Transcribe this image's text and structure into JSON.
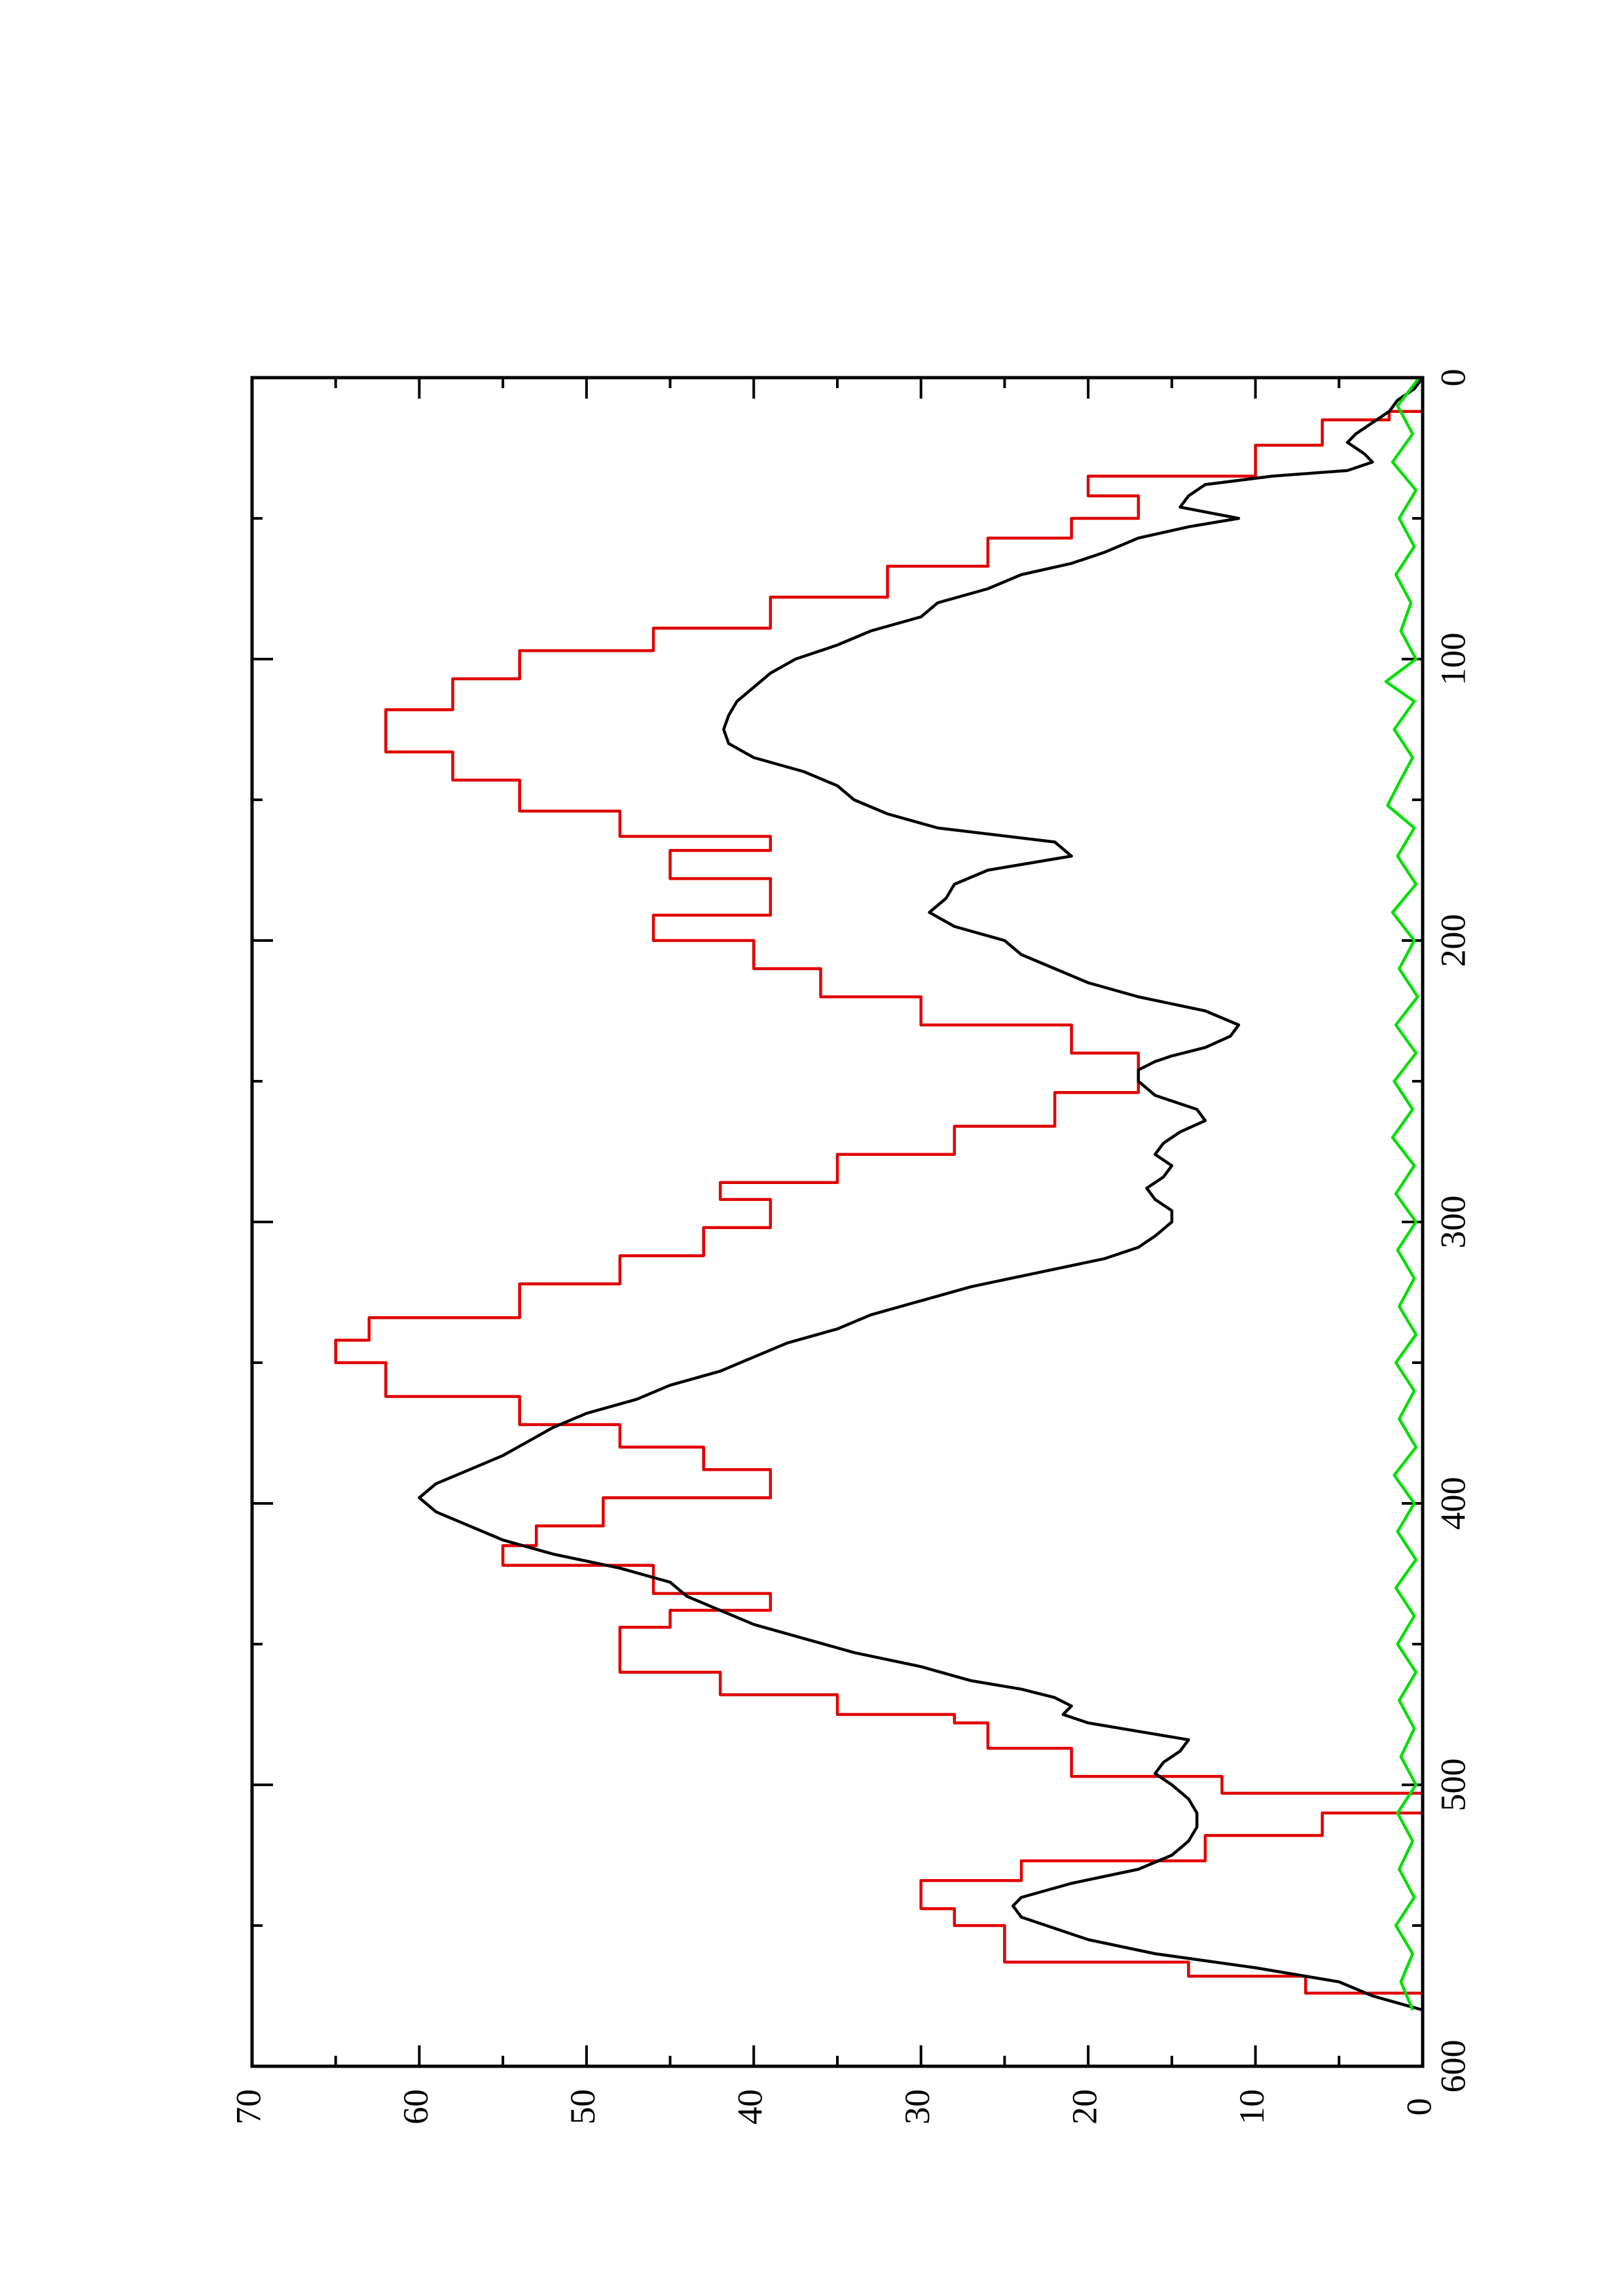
{
  "chart_data": {
    "type": "line",
    "title": "",
    "xlabel": "",
    "ylabel": "",
    "orientation": "rotated-90-ccw",
    "xlim": [
      0,
      600
    ],
    "ylim": [
      0,
      70
    ],
    "x_ticks": [
      "0",
      "100",
      "200",
      "300",
      "400",
      "500",
      "600"
    ],
    "y_ticks": [
      "0",
      "10",
      "20",
      "30",
      "40",
      "50",
      "60",
      "70"
    ],
    "x_minor_step": 50,
    "y_minor_step": 5,
    "grid": false,
    "legend": "none",
    "series": [
      {
        "color": "#e00000",
        "style": "step",
        "points": [
          [
            0,
            0
          ],
          [
            12,
            0
          ],
          [
            12,
            2
          ],
          [
            15,
            2
          ],
          [
            15,
            6
          ],
          [
            24,
            6
          ],
          [
            24,
            10
          ],
          [
            35,
            10
          ],
          [
            35,
            20
          ],
          [
            42,
            20
          ],
          [
            42,
            17
          ],
          [
            50,
            17
          ],
          [
            50,
            21
          ],
          [
            57,
            21
          ],
          [
            57,
            26
          ],
          [
            67,
            26
          ],
          [
            67,
            32
          ],
          [
            78,
            32
          ],
          [
            78,
            39
          ],
          [
            89,
            39
          ],
          [
            89,
            46
          ],
          [
            97,
            46
          ],
          [
            97,
            54
          ],
          [
            107,
            54
          ],
          [
            107,
            58
          ],
          [
            118,
            58
          ],
          [
            118,
            62
          ],
          [
            133,
            62
          ],
          [
            133,
            58
          ],
          [
            143,
            58
          ],
          [
            143,
            54
          ],
          [
            154,
            54
          ],
          [
            154,
            48
          ],
          [
            163,
            48
          ],
          [
            163,
            39
          ],
          [
            168,
            39
          ],
          [
            168,
            45
          ],
          [
            178,
            45
          ],
          [
            178,
            39
          ],
          [
            191,
            39
          ],
          [
            191,
            46
          ],
          [
            200,
            46
          ],
          [
            200,
            40
          ],
          [
            210,
            40
          ],
          [
            210,
            36
          ],
          [
            220,
            36
          ],
          [
            220,
            30
          ],
          [
            230,
            30
          ],
          [
            230,
            21
          ],
          [
            240,
            21
          ],
          [
            240,
            17
          ],
          [
            254,
            17
          ],
          [
            254,
            22
          ],
          [
            266,
            22
          ],
          [
            266,
            28
          ],
          [
            276,
            28
          ],
          [
            276,
            35
          ],
          [
            286,
            35
          ],
          [
            286,
            42
          ],
          [
            292,
            42
          ],
          [
            292,
            39
          ],
          [
            302,
            39
          ],
          [
            302,
            43
          ],
          [
            312,
            43
          ],
          [
            312,
            48
          ],
          [
            322,
            48
          ],
          [
            322,
            54
          ],
          [
            334,
            54
          ],
          [
            334,
            63
          ],
          [
            342,
            63
          ],
          [
            342,
            65
          ],
          [
            350,
            65
          ],
          [
            350,
            62
          ],
          [
            362,
            62
          ],
          [
            362,
            54
          ],
          [
            372,
            54
          ],
          [
            372,
            48
          ],
          [
            380,
            48
          ],
          [
            380,
            43
          ],
          [
            388,
            43
          ],
          [
            388,
            39
          ],
          [
            398,
            39
          ],
          [
            398,
            49
          ],
          [
            408,
            49
          ],
          [
            408,
            53
          ],
          [
            415,
            53
          ],
          [
            415,
            55
          ],
          [
            422,
            55
          ],
          [
            422,
            46
          ],
          [
            432,
            46
          ],
          [
            432,
            39
          ],
          [
            438,
            39
          ],
          [
            438,
            45
          ],
          [
            444,
            45
          ],
          [
            444,
            48
          ],
          [
            460,
            48
          ],
          [
            460,
            42
          ],
          [
            468,
            42
          ],
          [
            468,
            35
          ],
          [
            475,
            35
          ],
          [
            475,
            28
          ],
          [
            478,
            28
          ],
          [
            478,
            26
          ],
          [
            487,
            26
          ],
          [
            487,
            21
          ],
          [
            497,
            21
          ],
          [
            497,
            12
          ],
          [
            503,
            12
          ],
          [
            503,
            0
          ],
          [
            510,
            0
          ],
          [
            510,
            6
          ],
          [
            518,
            6
          ],
          [
            518,
            13
          ],
          [
            527,
            13
          ],
          [
            527,
            24
          ],
          [
            534,
            24
          ],
          [
            534,
            30
          ],
          [
            544,
            30
          ],
          [
            544,
            28
          ],
          [
            550,
            28
          ],
          [
            550,
            25
          ],
          [
            563,
            25
          ],
          [
            563,
            14
          ],
          [
            568,
            14
          ],
          [
            568,
            7
          ],
          [
            574,
            7
          ],
          [
            574,
            0
          ],
          [
            580,
            0
          ]
        ]
      },
      {
        "color": "#000000",
        "style": "line",
        "points": [
          [
            0,
            0
          ],
          [
            4,
            0.5
          ],
          [
            8,
            1.5
          ],
          [
            12,
            2
          ],
          [
            16,
            3
          ],
          [
            20,
            4
          ],
          [
            23,
            4.5
          ],
          [
            27,
            3.5
          ],
          [
            30,
            3
          ],
          [
            33,
            4.5
          ],
          [
            35,
            9
          ],
          [
            38,
            13
          ],
          [
            42,
            14
          ],
          [
            46,
            14.5
          ],
          [
            50,
            11
          ],
          [
            53,
            14
          ],
          [
            57,
            17
          ],
          [
            62,
            19
          ],
          [
            66,
            21
          ],
          [
            70,
            24
          ],
          [
            75,
            26
          ],
          [
            80,
            29
          ],
          [
            85,
            30
          ],
          [
            90,
            33
          ],
          [
            95,
            35
          ],
          [
            100,
            37.5
          ],
          [
            105,
            39
          ],
          [
            110,
            40
          ],
          [
            115,
            41
          ],
          [
            120,
            41.5
          ],
          [
            125,
            41.8
          ],
          [
            130,
            41.5
          ],
          [
            135,
            40
          ],
          [
            140,
            37
          ],
          [
            145,
            35
          ],
          [
            150,
            34
          ],
          [
            155,
            32
          ],
          [
            160,
            29
          ],
          [
            165,
            22
          ],
          [
            170,
            21
          ],
          [
            175,
            26
          ],
          [
            180,
            28
          ],
          [
            185,
            28.5
          ],
          [
            190,
            29.5
          ],
          [
            195,
            28
          ],
          [
            200,
            25
          ],
          [
            205,
            24
          ],
          [
            210,
            22
          ],
          [
            215,
            20
          ],
          [
            220,
            17
          ],
          [
            225,
            13
          ],
          [
            230,
            11
          ],
          [
            234,
            11.5
          ],
          [
            238,
            13
          ],
          [
            241,
            15
          ],
          [
            243,
            16
          ],
          [
            246,
            17
          ],
          [
            250,
            17
          ],
          [
            255,
            16
          ],
          [
            260,
            13.5
          ],
          [
            264,
            13
          ],
          [
            268,
            14.5
          ],
          [
            272,
            15.5
          ],
          [
            276,
            16
          ],
          [
            280,
            15
          ],
          [
            284,
            15.5
          ],
          [
            288,
            16.5
          ],
          [
            292,
            16
          ],
          [
            296,
            15
          ],
          [
            300,
            15
          ],
          [
            305,
            16
          ],
          [
            309,
            17
          ],
          [
            313,
            19
          ],
          [
            318,
            23
          ],
          [
            323,
            27
          ],
          [
            328,
            30
          ],
          [
            333,
            33
          ],
          [
            338,
            35
          ],
          [
            343,
            38
          ],
          [
            348,
            40
          ],
          [
            353,
            42
          ],
          [
            358,
            45
          ],
          [
            363,
            47
          ],
          [
            368,
            50
          ],
          [
            373,
            52
          ],
          [
            378,
            53.5
          ],
          [
            383,
            55
          ],
          [
            388,
            57
          ],
          [
            393,
            59
          ],
          [
            398,
            60
          ],
          [
            403,
            59
          ],
          [
            408,
            57
          ],
          [
            413,
            55
          ],
          [
            418,
            52
          ],
          [
            423,
            48
          ],
          [
            428,
            45
          ],
          [
            433,
            44
          ],
          [
            438,
            42
          ],
          [
            443,
            40
          ],
          [
            448,
            37
          ],
          [
            453,
            34
          ],
          [
            458,
            30
          ],
          [
            463,
            27
          ],
          [
            466,
            24
          ],
          [
            469,
            22
          ],
          [
            472,
            21
          ],
          [
            475,
            21.5
          ],
          [
            478,
            20
          ],
          [
            481,
            17
          ],
          [
            484,
            14
          ],
          [
            488,
            14.5
          ],
          [
            492,
            15.5
          ],
          [
            496,
            16
          ],
          [
            500,
            15
          ],
          [
            505,
            14
          ],
          [
            510,
            13.5
          ],
          [
            515,
            13.5
          ],
          [
            520,
            14
          ],
          [
            525,
            15
          ],
          [
            530,
            17
          ],
          [
            535,
            21
          ],
          [
            540,
            24
          ],
          [
            543,
            24.5
          ],
          [
            547,
            24
          ],
          [
            550,
            22.5
          ],
          [
            555,
            20
          ],
          [
            560,
            16
          ],
          [
            565,
            10
          ],
          [
            570,
            5
          ],
          [
            575,
            3
          ],
          [
            580,
            0
          ]
        ]
      },
      {
        "color": "#00e000",
        "style": "line",
        "points": [
          [
            0,
            0.2
          ],
          [
            10,
            1.5
          ],
          [
            20,
            0.6
          ],
          [
            30,
            1.8
          ],
          [
            40,
            0.4
          ],
          [
            50,
            1.4
          ],
          [
            60,
            0.5
          ],
          [
            70,
            1.6
          ],
          [
            80,
            0.7
          ],
          [
            90,
            1.3
          ],
          [
            100,
            0.4
          ],
          [
            108,
            2.2
          ],
          [
            115,
            0.5
          ],
          [
            125,
            1.7
          ],
          [
            135,
            0.6
          ],
          [
            145,
            1.5
          ],
          [
            152,
            2.1
          ],
          [
            160,
            0.5
          ],
          [
            170,
            1.5
          ],
          [
            180,
            0.4
          ],
          [
            190,
            1.8
          ],
          [
            200,
            0.5
          ],
          [
            210,
            1.4
          ],
          [
            220,
            0.3
          ],
          [
            230,
            1.6
          ],
          [
            240,
            0.4
          ],
          [
            250,
            1.7
          ],
          [
            260,
            0.6
          ],
          [
            270,
            1.8
          ],
          [
            280,
            0.5
          ],
          [
            290,
            1.6
          ],
          [
            300,
            0.4
          ],
          [
            310,
            1.5
          ],
          [
            320,
            0.5
          ],
          [
            330,
            1.4
          ],
          [
            340,
            0.4
          ],
          [
            350,
            1.6
          ],
          [
            360,
            0.5
          ],
          [
            370,
            1.4
          ],
          [
            380,
            0.4
          ],
          [
            390,
            1.7
          ],
          [
            400,
            0.5
          ],
          [
            410,
            1.5
          ],
          [
            420,
            0.4
          ],
          [
            430,
            1.6
          ],
          [
            440,
            0.5
          ],
          [
            450,
            1.5
          ],
          [
            460,
            0.4
          ],
          [
            470,
            1.4
          ],
          [
            480,
            0.5
          ],
          [
            490,
            1.3
          ],
          [
            500,
            0.4
          ],
          [
            510,
            1.5
          ],
          [
            520,
            0.6
          ],
          [
            530,
            1.4
          ],
          [
            540,
            0.5
          ],
          [
            550,
            1.6
          ],
          [
            560,
            0.6
          ],
          [
            570,
            1.3
          ],
          [
            580,
            0.6
          ]
        ]
      }
    ]
  }
}
